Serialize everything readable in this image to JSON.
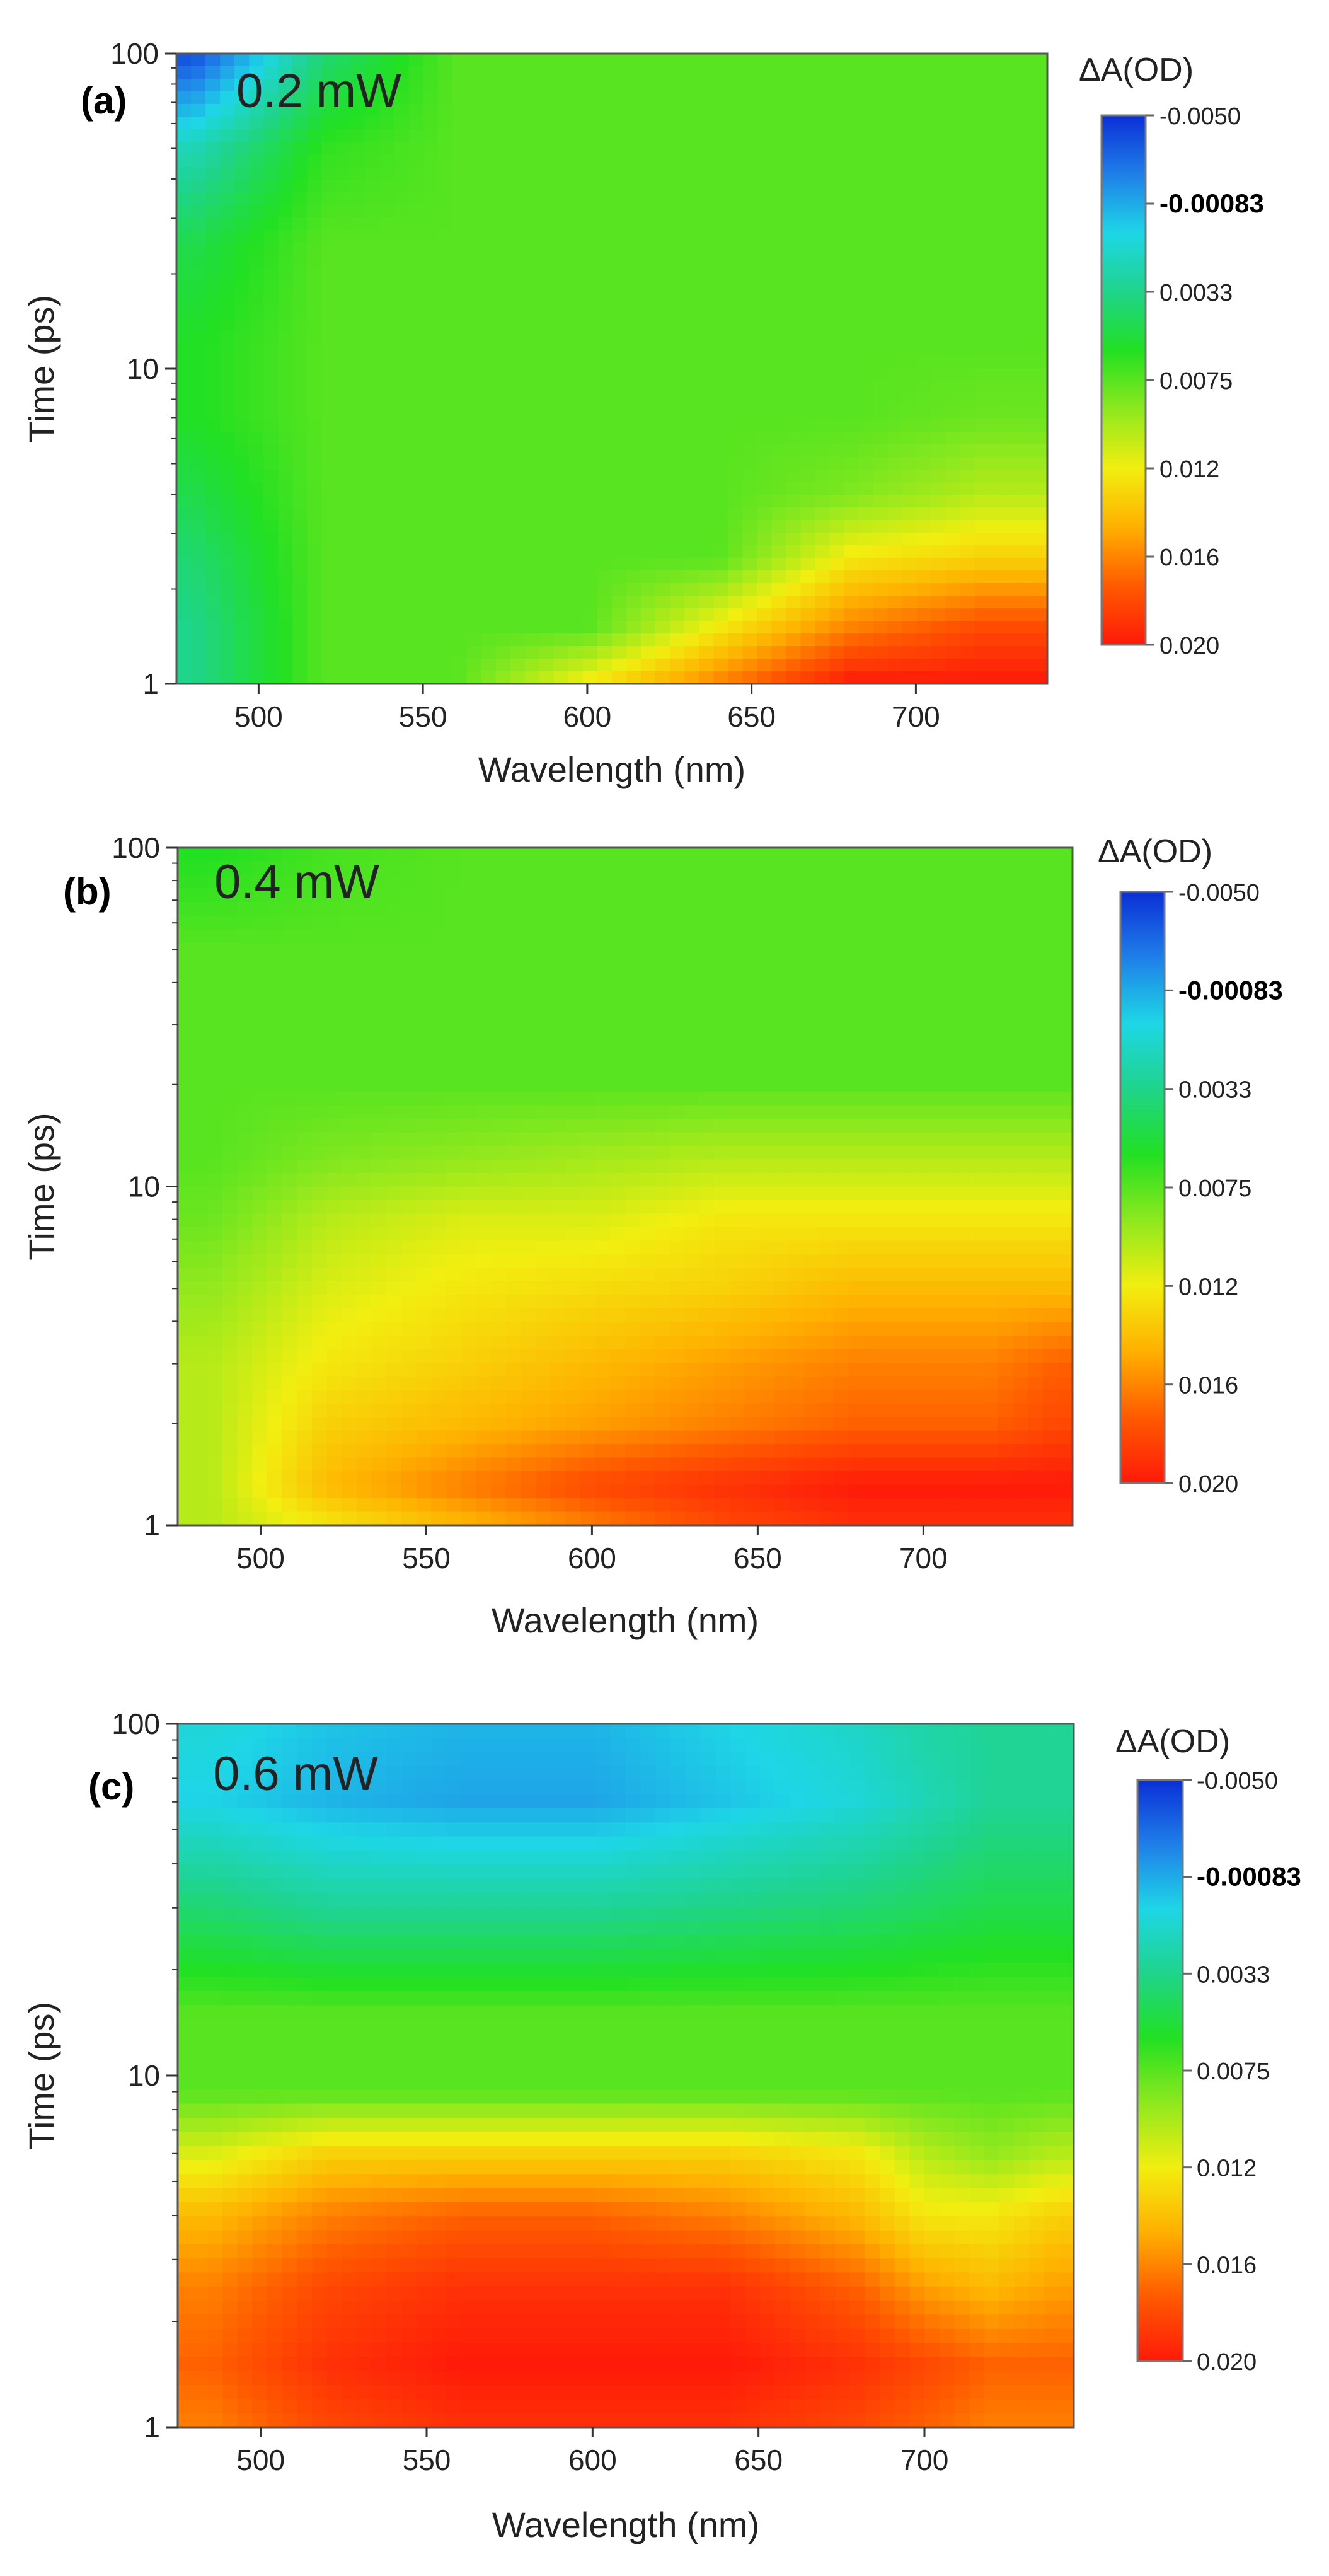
{
  "figure": {
    "colorbar_title": "ΔA(OD)",
    "colorbar_colors": [
      "#0b2fd6",
      "#1f7fe8",
      "#1ed6e6",
      "#1fd48a",
      "#22e022",
      "#8ee81e",
      "#f2ee10",
      "#ffb000",
      "#ff5a00",
      "#ff1a0a"
    ]
  },
  "chart_data": [
    {
      "type": "heatmap",
      "panel_label": "(a)",
      "annotation": "0.2 mW",
      "xlabel": "Wavelength (nm)",
      "ylabel": "Time (ps)",
      "xlim": [
        475,
        740
      ],
      "ylim": [
        1,
        100
      ],
      "yscale": "log",
      "xticks": [
        500,
        550,
        600,
        650,
        700
      ],
      "yticks": [
        1,
        10,
        100
      ],
      "colorbar": {
        "title": "ΔA(OD)",
        "ticks": [
          "-0.0050",
          "-0.00083",
          "0.0033",
          "0.0075",
          "0.012",
          "0.016",
          "0.020"
        ],
        "range": [
          -0.005,
          0.02
        ]
      },
      "wavelengths": [
        480,
        520,
        560,
        600,
        640,
        680,
        720,
        740
      ],
      "times": [
        1,
        1.5,
        2.5,
        4,
        7,
        12,
        25,
        50,
        100
      ],
      "z": [
        [
          0.0033,
          0.0075,
          0.0075,
          0.012,
          0.016,
          0.02,
          0.02,
          0.02
        ],
        [
          0.0033,
          0.0075,
          0.0075,
          0.0075,
          0.012,
          0.016,
          0.018,
          0.018
        ],
        [
          0.004,
          0.0075,
          0.0075,
          0.0075,
          0.0075,
          0.012,
          0.013,
          0.013
        ],
        [
          0.005,
          0.0075,
          0.0075,
          0.0075,
          0.0075,
          0.0085,
          0.01,
          0.01
        ],
        [
          0.006,
          0.0075,
          0.0075,
          0.0075,
          0.0075,
          0.0075,
          0.008,
          0.008
        ],
        [
          0.006,
          0.0075,
          0.0075,
          0.0075,
          0.0075,
          0.0075,
          0.0075,
          0.0075
        ],
        [
          0.005,
          0.0075,
          0.0075,
          0.0075,
          0.0075,
          0.0075,
          0.0075,
          0.0075
        ],
        [
          0.002,
          0.0065,
          0.0075,
          0.0075,
          0.0075,
          0.0075,
          0.0075,
          0.0075
        ],
        [
          -0.004,
          0.004,
          0.0075,
          0.0075,
          0.0075,
          0.0075,
          0.0075,
          0.0075
        ]
      ]
    },
    {
      "type": "heatmap",
      "panel_label": "(b)",
      "annotation": "0.4 mW",
      "xlabel": "Wavelength (nm)",
      "ylabel": "Time (ps)",
      "xlim": [
        475,
        745
      ],
      "ylim": [
        1,
        100
      ],
      "yscale": "log",
      "xticks": [
        500,
        550,
        600,
        650,
        700
      ],
      "yticks": [
        1,
        10,
        100
      ],
      "colorbar": {
        "title": "ΔA(OD)",
        "ticks": [
          "-0.0050",
          "-0.00083",
          "0.0033",
          "0.0075",
          "0.012",
          "0.016",
          "0.020"
        ],
        "range": [
          -0.005,
          0.02
        ]
      },
      "wavelengths": [
        485,
        520,
        560,
        600,
        640,
        680,
        720,
        740
      ],
      "times": [
        1,
        1.3,
        2,
        3,
        5,
        8,
        12,
        20,
        50,
        100
      ],
      "z": [
        [
          0.01,
          0.012,
          0.014,
          0.016,
          0.018,
          0.019,
          0.019,
          0.019
        ],
        [
          0.01,
          0.014,
          0.016,
          0.018,
          0.019,
          0.02,
          0.02,
          0.02
        ],
        [
          0.01,
          0.013,
          0.014,
          0.015,
          0.016,
          0.017,
          0.017,
          0.018
        ],
        [
          0.01,
          0.012,
          0.013,
          0.014,
          0.015,
          0.016,
          0.016,
          0.017
        ],
        [
          0.009,
          0.011,
          0.012,
          0.0125,
          0.013,
          0.014,
          0.014,
          0.014
        ],
        [
          0.008,
          0.01,
          0.011,
          0.011,
          0.012,
          0.012,
          0.012,
          0.012
        ],
        [
          0.0075,
          0.0085,
          0.009,
          0.0095,
          0.01,
          0.01,
          0.01,
          0.01
        ],
        [
          0.0075,
          0.0075,
          0.0075,
          0.0075,
          0.0075,
          0.0075,
          0.0075,
          0.0075
        ],
        [
          0.0075,
          0.0075,
          0.0075,
          0.0075,
          0.0075,
          0.0075,
          0.0075,
          0.0075
        ],
        [
          0.006,
          0.007,
          0.0075,
          0.0075,
          0.0075,
          0.0075,
          0.0075,
          0.0075
        ]
      ]
    },
    {
      "type": "heatmap",
      "panel_label": "(c)",
      "annotation": "0.6 mW",
      "xlabel": "Wavelength (nm)",
      "ylabel": "Time (ps)",
      "xlim": [
        475,
        745
      ],
      "ylim": [
        1,
        100
      ],
      "yscale": "log",
      "xticks": [
        500,
        550,
        600,
        650,
        700
      ],
      "yticks": [
        1,
        10,
        100
      ],
      "colorbar": {
        "title": "ΔA(OD)",
        "ticks": [
          "-0.0050",
          "-0.00083",
          "0.0033",
          "0.0075",
          "0.012",
          "0.016",
          "0.020"
        ],
        "range": [
          -0.005,
          0.02
        ]
      },
      "wavelengths": [
        485,
        520,
        560,
        600,
        640,
        680,
        700,
        720,
        740
      ],
      "times": [
        1,
        1.5,
        2.5,
        4,
        6,
        9,
        15,
        30,
        60,
        100
      ],
      "z": [
        [
          0.016,
          0.018,
          0.019,
          0.019,
          0.019,
          0.018,
          0.017,
          0.016,
          0.016
        ],
        [
          0.017,
          0.019,
          0.02,
          0.02,
          0.02,
          0.019,
          0.018,
          0.017,
          0.017
        ],
        [
          0.016,
          0.018,
          0.019,
          0.019,
          0.019,
          0.017,
          0.015,
          0.014,
          0.015
        ],
        [
          0.014,
          0.016,
          0.017,
          0.017,
          0.016,
          0.014,
          0.012,
          0.012,
          0.013
        ],
        [
          0.011,
          0.013,
          0.013,
          0.013,
          0.013,
          0.012,
          0.01,
          0.009,
          0.01
        ],
        [
          0.0075,
          0.0075,
          0.0075,
          0.0075,
          0.0075,
          0.0075,
          0.0075,
          0.0075,
          0.0075
        ],
        [
          0.0075,
          0.0075,
          0.0075,
          0.0075,
          0.0075,
          0.0075,
          0.0075,
          0.0075,
          0.0075
        ],
        [
          0.004,
          0.003,
          0.003,
          0.003,
          0.0035,
          0.004,
          0.0045,
          0.005,
          0.005
        ],
        [
          0.0005,
          -0.0005,
          -0.001,
          -0.001,
          0.0,
          0.001,
          0.002,
          0.003,
          0.003
        ],
        [
          0.001,
          0.0,
          -0.0005,
          -0.0005,
          0.0005,
          0.0015,
          0.0025,
          0.003,
          0.003
        ]
      ]
    }
  ]
}
